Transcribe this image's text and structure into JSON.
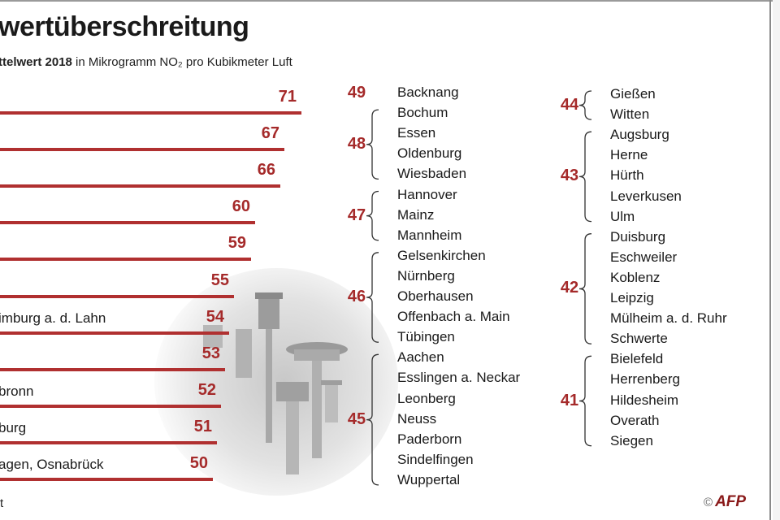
{
  "header": {
    "title": "wertüberschreitung",
    "subtitle_bold": "ttelwert 2018",
    "subtitle_rest": " in Mikrogramm NO₂ pro Kubikmeter Luft"
  },
  "footer": {
    "source": "t",
    "credit": "AFP",
    "copyright": "©"
  },
  "colors": {
    "accent": "#b03030",
    "value_text": "#a52a2a"
  },
  "chart_data": {
    "type": "bar",
    "orientation": "horizontal",
    "title": "wertüberschreitung",
    "subtitle": "ttelwert 2018 in Mikrogramm NO₂ pro Kubikmeter Luft",
    "xlim": [
      0,
      71
    ],
    "grid": false,
    "bars": [
      {
        "label": "",
        "value": 71
      },
      {
        "label": "",
        "value": 67
      },
      {
        "label": "",
        "value": 66
      },
      {
        "label": "",
        "value": 60
      },
      {
        "label": "",
        "value": 59
      },
      {
        "label": "",
        "value": 55
      },
      {
        "label": "imburg a. d. Lahn",
        "value": 54
      },
      {
        "label": "",
        "value": 53
      },
      {
        "label": "bronn",
        "value": 52
      },
      {
        "label": "burg",
        "value": 51
      },
      {
        "label": "agen, Osnabrück",
        "value": 50
      }
    ],
    "groups": [
      {
        "value": 49,
        "cities": [
          "Backnang"
        ]
      },
      {
        "value": 48,
        "cities": [
          "Bochum",
          "Essen",
          "Oldenburg",
          "Wiesbaden"
        ]
      },
      {
        "value": 47,
        "cities": [
          "Hannover",
          "Mainz",
          "Mannheim"
        ]
      },
      {
        "value": 46,
        "cities": [
          "Gelsenkirchen",
          "Nürnberg",
          "Oberhausen",
          "Offenbach a. Main",
          "Tübingen"
        ]
      },
      {
        "value": 45,
        "cities": [
          "Aachen",
          "Esslingen a. Neckar",
          "Leonberg",
          "Neuss",
          "Paderborn",
          "Sindelfingen",
          "Wuppertal"
        ]
      },
      {
        "value": 44,
        "cities": [
          "Gießen",
          "Witten"
        ]
      },
      {
        "value": 43,
        "cities": [
          "Augsburg",
          "Herne",
          "Hürth",
          "Leverkusen",
          "Ulm"
        ]
      },
      {
        "value": 42,
        "cities": [
          "Duisburg",
          "Eschweiler",
          "Koblenz",
          "Leipzig",
          "Mülheim a. d. Ruhr",
          "Schwerte"
        ]
      },
      {
        "value": 41,
        "cities": [
          "Bielefeld",
          "Herrenberg",
          "Hildesheim",
          "Overath",
          "Siegen"
        ]
      }
    ]
  }
}
